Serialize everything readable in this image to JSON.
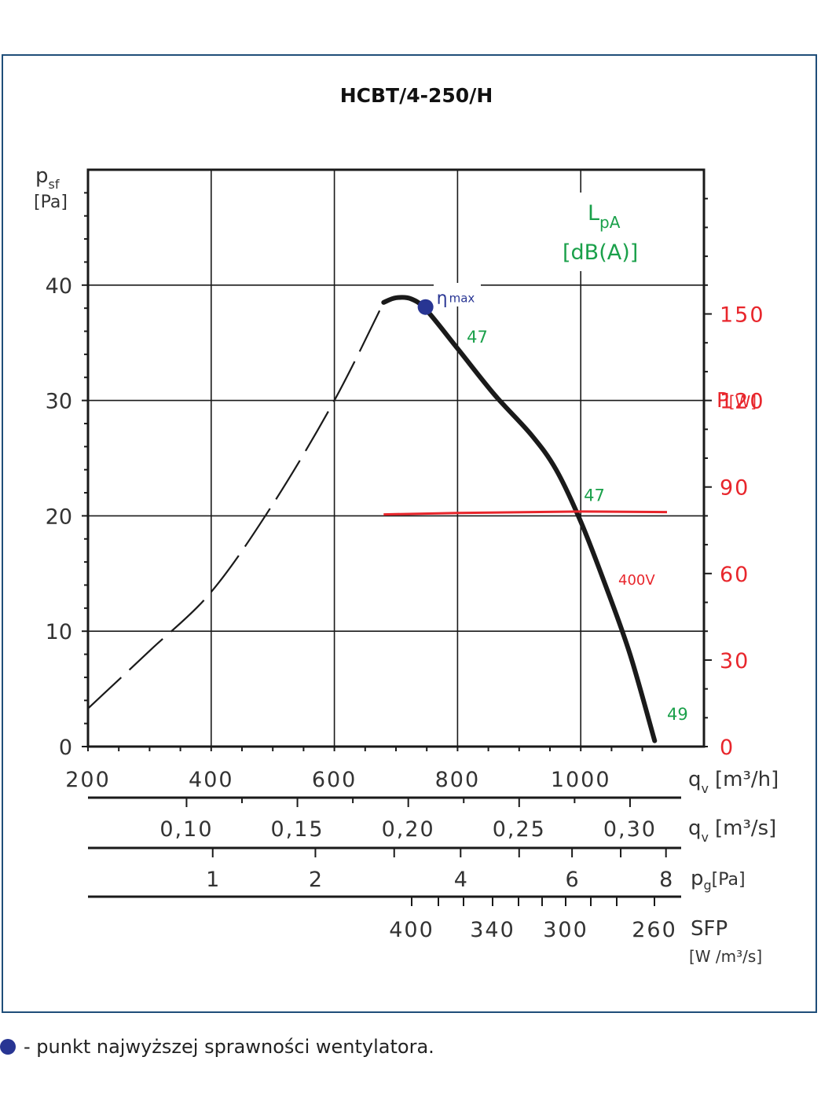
{
  "chart_data": {
    "type": "line",
    "title": "HCBT/4-250/H",
    "xlabel": "qv [m3/h]",
    "ylabel": "psf [Pa]",
    "xlim": [
      200,
      1200
    ],
    "ylim": [
      0,
      50
    ],
    "x_ticks": [
      "200",
      "400",
      "600",
      "800",
      "1000"
    ],
    "y_ticks": [
      "0",
      "10",
      "20",
      "30",
      "40"
    ],
    "grid": true,
    "fan_curve": {
      "unstable_dashed": [
        [
          200,
          3.3
        ],
        [
          300,
          8.3
        ],
        [
          400,
          13.4
        ],
        [
          500,
          21
        ],
        [
          600,
          30
        ],
        [
          680,
          38.5
        ]
      ],
      "operating": [
        [
          680,
          38.5
        ],
        [
          700,
          38.9
        ],
        [
          725,
          38.8
        ],
        [
          750,
          37.8
        ],
        [
          800,
          34.5
        ],
        [
          860,
          30.5
        ],
        [
          920,
          27
        ],
        [
          960,
          24
        ],
        [
          1000,
          19.5
        ],
        [
          1040,
          14
        ],
        [
          1080,
          8
        ],
        [
          1120,
          0.5
        ]
      ]
    },
    "eta_max": {
      "x": 748,
      "y": 38.1,
      "label_main": "η",
      "label_sub": "max"
    },
    "sound_labels": [
      {
        "x": 815,
        "y": 35,
        "text": "47"
      },
      {
        "x": 1005,
        "y": 21.3,
        "text": "47"
      },
      {
        "x": 1140,
        "y": 2.3,
        "text": "49"
      }
    ],
    "sound_axis": {
      "main": "L",
      "sub": "pA",
      "unit": "[dB(A)]"
    },
    "power": {
      "axis_title_main": "P",
      "axis_title_unit": "[W]",
      "ticks": [
        "0",
        "30",
        "60",
        "90",
        "120",
        "150"
      ],
      "ylim": [
        0,
        200
      ],
      "series_label": "400V",
      "points": [
        [
          680,
          80.5
        ],
        [
          800,
          81
        ],
        [
          1000,
          81.5
        ],
        [
          1140,
          81.3
        ]
      ]
    },
    "secondary_scales": {
      "qv_m3s": {
        "label_main": "q",
        "label_sub": "v",
        "label_unit": "[m³/s]",
        "ticks": [
          "0,10",
          "0,15",
          "0,20",
          "0,25",
          "0,30"
        ]
      },
      "pg": {
        "label_main": "p",
        "label_sub": "g",
        "label_unit": "[Pa]",
        "ticks": [
          "1",
          "2",
          "4",
          "6",
          "8"
        ]
      },
      "sfp": {
        "label_main": "SFP",
        "label_unit_line": "[W /m³/s]",
        "ticks": [
          "400",
          "340",
          "300",
          "260"
        ]
      }
    },
    "qv_m3h_label": {
      "main": "q",
      "sub": "v",
      "unit": "[m³/h]"
    },
    "psf_label": {
      "main": "p",
      "sub": "sf",
      "unit": "[Pa]"
    }
  },
  "legend_note": "- punkt najwyższej sprawności wentylatora.",
  "colors": {
    "curve": "#1a1a1a",
    "power": "#e8262c",
    "sound": "#1aa04a",
    "eta": "#283593",
    "frame": "#1f4e79"
  }
}
